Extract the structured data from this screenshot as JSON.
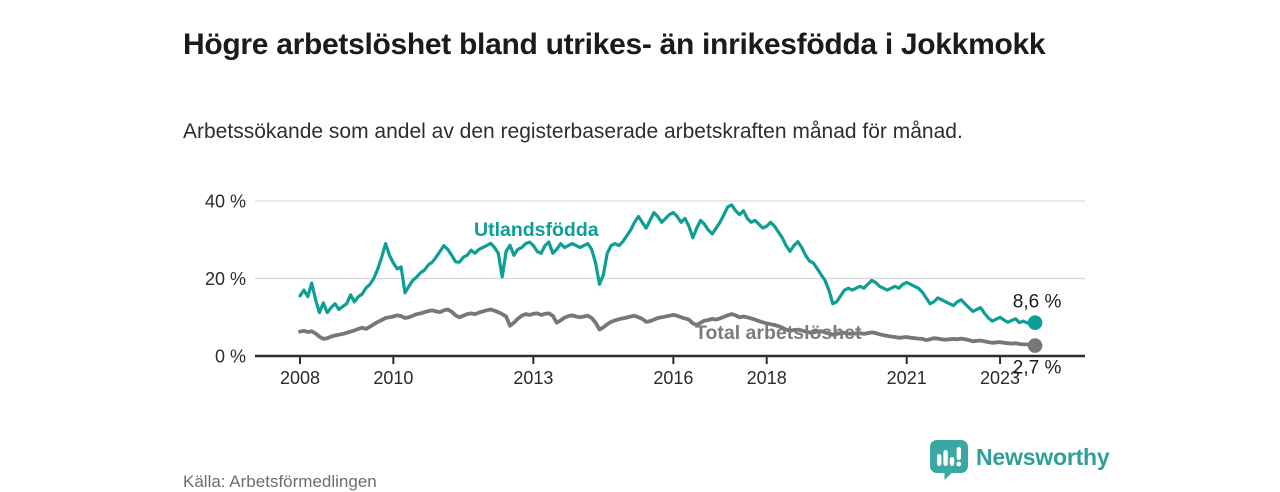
{
  "header": {
    "title": "Högre arbetslöshet bland utrikes- än inrikesfödda i Jokkmokk",
    "subtitle": "Arbetssökande som andel av den registerbaserade arbetskraften månad för månad."
  },
  "footer": {
    "source": "Källa: Arbetsförmedlingen",
    "brand": "Newsworthy",
    "brand_icon": "speech-bubble-bar-chart-icon"
  },
  "colors": {
    "foreign_born_line": "#0d9f93",
    "total_line": "#76767b",
    "total_label": "#7b7b80",
    "brand_teal": "#3aa7a2",
    "axis": "#2e2e2e",
    "grid": "#d9d9d9",
    "tick_text": "#2b2b2b",
    "value_text": "#1b1b1b"
  },
  "chart_data": {
    "type": "line",
    "title": "Högre arbetslöshet bland utrikes- än inrikesfödda i Jokkmokk",
    "xlabel": "",
    "ylabel": "",
    "unit": "%",
    "x_start_year": 2008,
    "points_per_year": 12,
    "x_range": [
      2008.0,
      2023.75
    ],
    "ylim": [
      0,
      42
    ],
    "grid": "horizontal",
    "legend_position": "inline-labels",
    "y_ticks": [
      {
        "value": 0,
        "label": "0 %"
      },
      {
        "value": 20,
        "label": "20 %"
      },
      {
        "value": 40,
        "label": "40 %"
      }
    ],
    "x_ticks": [
      {
        "value": 2008,
        "label": "2008"
      },
      {
        "value": 2010,
        "label": "2010"
      },
      {
        "value": 2013,
        "label": "2013"
      },
      {
        "value": 2016,
        "label": "2016"
      },
      {
        "value": 2018,
        "label": "2018"
      },
      {
        "value": 2021,
        "label": "2021"
      },
      {
        "value": 2023,
        "label": "2023"
      }
    ],
    "series": [
      {
        "name": "Utlandsfödda",
        "color": "#0d9f93",
        "end_label": "8,6 %",
        "end_value": 8.6,
        "values": [
          15.5,
          17.0,
          15.3,
          18.8,
          14.5,
          11.2,
          13.7,
          11.2,
          12.5,
          13.5,
          12.0,
          12.8,
          13.5,
          15.8,
          14.0,
          15.3,
          16.0,
          17.6,
          18.5,
          20.1,
          22.5,
          25.5,
          29.0,
          26.0,
          24.0,
          22.5,
          23.0,
          16.3,
          18.0,
          19.5,
          20.4,
          21.5,
          22.2,
          23.5,
          24.2,
          25.5,
          27.0,
          28.5,
          27.5,
          26.0,
          24.3,
          24.2,
          25.5,
          26.0,
          27.3,
          26.5,
          27.5,
          28.0,
          28.5,
          29.1,
          28.0,
          26.5,
          20.4,
          27.0,
          28.6,
          26.0,
          27.5,
          28.0,
          29.0,
          29.4,
          28.5,
          27.0,
          26.5,
          28.5,
          29.4,
          26.5,
          27.5,
          29.0,
          28.0,
          28.5,
          29.0,
          28.5,
          28.0,
          28.5,
          29.0,
          27.5,
          24.0,
          18.5,
          21.0,
          26.5,
          28.5,
          29.0,
          28.5,
          29.5,
          31.0,
          32.5,
          34.5,
          36.0,
          34.5,
          33.0,
          35.0,
          37.0,
          36.0,
          34.5,
          35.5,
          36.5,
          37.0,
          36.0,
          34.5,
          35.5,
          33.5,
          30.5,
          33.0,
          35.0,
          34.0,
          32.5,
          31.5,
          33.0,
          34.5,
          36.5,
          38.5,
          39.0,
          37.5,
          36.5,
          37.5,
          35.5,
          34.5,
          35.0,
          34.0,
          33.0,
          33.5,
          34.5,
          33.5,
          32.0,
          30.5,
          28.5,
          27.0,
          28.5,
          29.5,
          28.0,
          26.0,
          24.5,
          24.0,
          22.5,
          21.0,
          19.5,
          17.0,
          13.5,
          14.0,
          15.5,
          17.0,
          17.5,
          17.0,
          17.5,
          18.0,
          17.5,
          18.5,
          19.5,
          19.0,
          18.0,
          17.5,
          17.0,
          17.5,
          18.0,
          17.5,
          18.5,
          19.0,
          18.5,
          18.0,
          17.5,
          16.5,
          15.0,
          13.5,
          14.0,
          15.0,
          14.5,
          14.0,
          13.5,
          13.0,
          14.0,
          14.5,
          13.5,
          12.5,
          11.5,
          12.0,
          12.5,
          11.0,
          9.8,
          9.0,
          9.5,
          10.0,
          9.3,
          8.7,
          9.2,
          9.6,
          8.6,
          9.0,
          8.5,
          9.2,
          8.6
        ]
      },
      {
        "name": "Total arbetslöshet",
        "color": "#76767b",
        "end_label": "2,7 %",
        "end_value": 2.7,
        "values": [
          6.3,
          6.5,
          6.2,
          6.4,
          5.8,
          5.0,
          4.4,
          4.6,
          5.0,
          5.3,
          5.5,
          5.7,
          6.0,
          6.3,
          6.6,
          7.0,
          7.3,
          7.0,
          7.6,
          8.2,
          8.8,
          9.3,
          9.8,
          10.0,
          10.2,
          10.5,
          10.3,
          9.8,
          10.0,
          10.4,
          10.8,
          11.0,
          11.3,
          11.6,
          11.8,
          11.5,
          11.3,
          11.8,
          12.0,
          11.4,
          10.5,
          10.0,
          10.4,
          10.8,
          11.0,
          10.8,
          11.2,
          11.5,
          11.8,
          12.0,
          11.7,
          11.3,
          10.8,
          10.2,
          7.8,
          8.6,
          9.6,
          10.4,
          10.8,
          10.6,
          10.9,
          11.0,
          10.6,
          10.9,
          11.0,
          10.4,
          8.6,
          9.2,
          9.9,
          10.3,
          10.5,
          10.2,
          10.0,
          10.2,
          10.4,
          9.8,
          8.6,
          6.8,
          7.4,
          8.2,
          8.8,
          9.2,
          9.5,
          9.7,
          9.9,
          10.2,
          10.4,
          10.0,
          9.6,
          8.8,
          9.0,
          9.4,
          9.8,
          10.0,
          10.2,
          10.4,
          10.6,
          10.4,
          10.0,
          9.7,
          9.4,
          8.4,
          8.0,
          8.6,
          9.1,
          9.3,
          9.6,
          9.4,
          9.7,
          10.1,
          10.5,
          10.8,
          10.5,
          10.0,
          10.2,
          10.0,
          9.7,
          9.4,
          9.0,
          8.7,
          8.4,
          8.2,
          8.0,
          7.7,
          7.3,
          6.8,
          6.5,
          6.7,
          6.8,
          6.6,
          6.3,
          6.1,
          6.1,
          6.3,
          6.4,
          6.1,
          5.8,
          5.5,
          5.7,
          5.9,
          6.0,
          5.8,
          5.7,
          5.8,
          5.9,
          5.7,
          5.9,
          6.1,
          5.9,
          5.6,
          5.4,
          5.2,
          5.0,
          4.9,
          4.7,
          4.8,
          4.9,
          4.7,
          4.6,
          4.5,
          4.4,
          4.1,
          4.3,
          4.6,
          4.5,
          4.3,
          4.2,
          4.3,
          4.4,
          4.3,
          4.5,
          4.3,
          4.1,
          3.8,
          3.9,
          4.0,
          3.8,
          3.6,
          3.4,
          3.5,
          3.6,
          3.4,
          3.3,
          3.2,
          3.3,
          3.1,
          3.0,
          3.0,
          2.8,
          2.7
        ]
      }
    ]
  }
}
